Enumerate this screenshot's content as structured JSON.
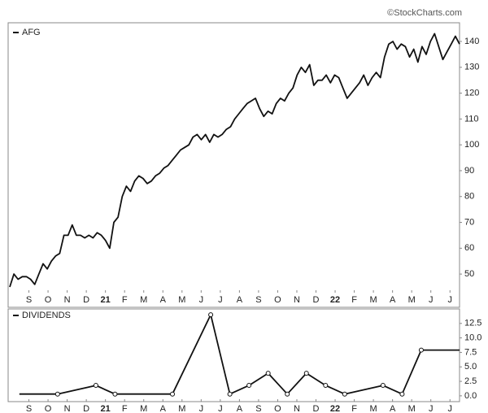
{
  "watermark": "©StockCharts.com",
  "chart_data": [
    {
      "type": "line",
      "series": [
        {
          "name": "AFG",
          "color": "#111111",
          "values": [
            45,
            50,
            48,
            49,
            49,
            48,
            46,
            50,
            54,
            52,
            55,
            57,
            58,
            65,
            65,
            69,
            65,
            65,
            64,
            65,
            64,
            66,
            65,
            63,
            60,
            70,
            72,
            80,
            84,
            82,
            86,
            88,
            87,
            85,
            86,
            88,
            89,
            91,
            92,
            94,
            96,
            98,
            99,
            100,
            103,
            104,
            102,
            104,
            101,
            104,
            103,
            104,
            106,
            107,
            110,
            112,
            114,
            116,
            117,
            118,
            114,
            111,
            113,
            112,
            116,
            118,
            117,
            120,
            122,
            127,
            130,
            128,
            131,
            123,
            125,
            125,
            127,
            124,
            127,
            126,
            122,
            118,
            120,
            122,
            124,
            127,
            123,
            126,
            128,
            126,
            134,
            139,
            140,
            137,
            139,
            138,
            134,
            137,
            132,
            138,
            135,
            140,
            143,
            138,
            133,
            136,
            139,
            142,
            139
          ]
        }
      ],
      "xlim": [
        "2020-08",
        "2022-07"
      ],
      "xticks": [
        {
          "value": "2020-09",
          "label": "S"
        },
        {
          "value": "2020-10",
          "label": "O"
        },
        {
          "value": "2020-11",
          "label": "N"
        },
        {
          "value": "2020-12",
          "label": "D"
        },
        {
          "value": "2021-01",
          "label": "21"
        },
        {
          "value": "2021-02",
          "label": "F"
        },
        {
          "value": "2021-03",
          "label": "M"
        },
        {
          "value": "2021-04",
          "label": "A"
        },
        {
          "value": "2021-05",
          "label": "M"
        },
        {
          "value": "2021-06",
          "label": "J"
        },
        {
          "value": "2021-07",
          "label": "J"
        },
        {
          "value": "2021-08",
          "label": "A"
        },
        {
          "value": "2021-09",
          "label": "S"
        },
        {
          "value": "2021-10",
          "label": "O"
        },
        {
          "value": "2021-11",
          "label": "N"
        },
        {
          "value": "2021-12",
          "label": "D"
        },
        {
          "value": "2022-01",
          "label": "22"
        },
        {
          "value": "2022-02",
          "label": "F"
        },
        {
          "value": "2022-03",
          "label": "M"
        },
        {
          "value": "2022-04",
          "label": "A"
        },
        {
          "value": "2022-05",
          "label": "M"
        },
        {
          "value": "2022-06",
          "label": "J"
        },
        {
          "value": "2022-07",
          "label": "J"
        }
      ],
      "ylim": [
        42.8,
        146.6
      ],
      "yticks": [
        50,
        60,
        70,
        80,
        90,
        100,
        110,
        120,
        130,
        140
      ]
    },
    {
      "type": "line",
      "series": [
        {
          "name": "DIVIDENDS",
          "color": "#111111",
          "markers": true,
          "x": [
            "2020-08",
            "2020-10",
            "2020-12",
            "2021-01",
            "2021-04",
            "2021-06",
            "2021-07",
            "2021-08",
            "2021-09",
            "2021-10",
            "2021-11",
            "2021-12",
            "2022-01",
            "2022-03",
            "2022-04",
            "2022-05",
            "2022-07"
          ],
          "values": [
            0.3,
            0.3,
            1.8,
            0.3,
            0.3,
            14.0,
            0.3,
            1.8,
            3.9,
            0.3,
            3.9,
            1.8,
            0.3,
            1.8,
            0.3,
            7.9,
            7.9
          ]
        }
      ],
      "xlim": [
        "2020-08",
        "2022-07"
      ],
      "xticks": [
        {
          "value": "2020-09",
          "label": "S"
        },
        {
          "value": "2020-10",
          "label": "O"
        },
        {
          "value": "2020-11",
          "label": "N"
        },
        {
          "value": "2020-12",
          "label": "D"
        },
        {
          "value": "2021-01",
          "label": "21"
        },
        {
          "value": "2021-02",
          "label": "F"
        },
        {
          "value": "2021-03",
          "label": "M"
        },
        {
          "value": "2021-04",
          "label": "A"
        },
        {
          "value": "2021-05",
          "label": "M"
        },
        {
          "value": "2021-06",
          "label": "J"
        },
        {
          "value": "2021-07",
          "label": "J"
        },
        {
          "value": "2021-08",
          "label": "A"
        },
        {
          "value": "2021-09",
          "label": "S"
        },
        {
          "value": "2021-10",
          "label": "O"
        },
        {
          "value": "2021-11",
          "label": "N"
        },
        {
          "value": "2021-12",
          "label": "D"
        },
        {
          "value": "2022-01",
          "label": "22"
        },
        {
          "value": "2022-02",
          "label": "F"
        },
        {
          "value": "2022-03",
          "label": "M"
        },
        {
          "value": "2022-04",
          "label": "A"
        },
        {
          "value": "2022-05",
          "label": "M"
        },
        {
          "value": "2022-06",
          "label": "J"
        },
        {
          "value": "2022-07",
          "label": "J"
        }
      ],
      "ylim": [
        -1,
        15
      ],
      "yticks": [
        {
          "value": 0,
          "label": "0.0"
        },
        2.5,
        {
          "value": 5,
          "label": "5.0"
        },
        7.5,
        {
          "value": 10,
          "label": "10.0"
        },
        12.5
      ]
    }
  ]
}
